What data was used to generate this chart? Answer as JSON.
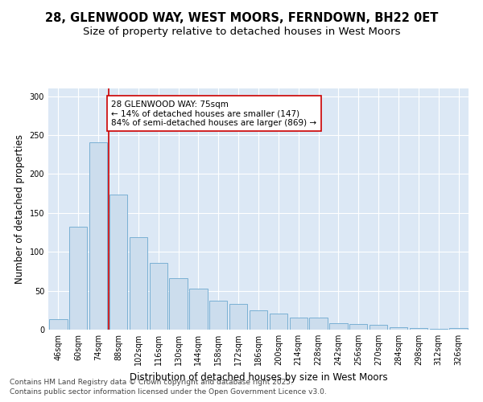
{
  "title_line1": "28, GLENWOOD WAY, WEST MOORS, FERNDOWN, BH22 0ET",
  "title_line2": "Size of property relative to detached houses in West Moors",
  "xlabel": "Distribution of detached houses by size in West Moors",
  "ylabel": "Number of detached properties",
  "categories": [
    "46sqm",
    "60sqm",
    "74sqm",
    "88sqm",
    "102sqm",
    "116sqm",
    "130sqm",
    "144sqm",
    "158sqm",
    "172sqm",
    "186sqm",
    "200sqm",
    "214sqm",
    "228sqm",
    "242sqm",
    "256sqm",
    "270sqm",
    "284sqm",
    "298sqm",
    "312sqm",
    "326sqm"
  ],
  "values": [
    13,
    132,
    241,
    174,
    119,
    86,
    66,
    53,
    37,
    33,
    25,
    21,
    16,
    15,
    8,
    7,
    6,
    3,
    2,
    1,
    2
  ],
  "bar_color": "#ccdded",
  "bar_edge_color": "#7ab0d4",
  "bar_width": 0.9,
  "vline_color": "#cc0000",
  "vline_x_index": 2.5,
  "annotation_text": "28 GLENWOOD WAY: 75sqm\n← 14% of detached houses are smaller (147)\n84% of semi-detached houses are larger (869) →",
  "annotation_box_facecolor": "#ffffff",
  "annotation_box_edgecolor": "#cc0000",
  "ylim": [
    0,
    310
  ],
  "yticks": [
    0,
    50,
    100,
    150,
    200,
    250,
    300
  ],
  "plot_bg_color": "#dce8f5",
  "fig_bg_color": "#ffffff",
  "grid_color": "#ffffff",
  "footer_line1": "Contains HM Land Registry data © Crown copyright and database right 2025.",
  "footer_line2": "Contains public sector information licensed under the Open Government Licence v3.0.",
  "title_fontsize": 10.5,
  "subtitle_fontsize": 9.5,
  "axis_label_fontsize": 8.5,
  "tick_fontsize": 7,
  "annotation_fontsize": 7.5,
  "footer_fontsize": 6.5
}
